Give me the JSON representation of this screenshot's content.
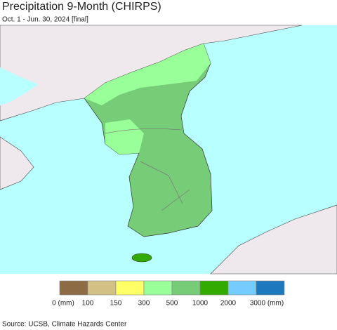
{
  "title": "Precipitation 9-Month (CHIRPS)",
  "subtitle": "Oct. 1 - Jun. 30, 2024 [final]",
  "legend": {
    "items": [
      {
        "label": "0 (mm)",
        "color": "#8c6b45"
      },
      {
        "label": "100",
        "color": "#d3c085"
      },
      {
        "label": "150",
        "color": "#ffff66"
      },
      {
        "label": "300",
        "color": "#99ff99"
      },
      {
        "label": "500",
        "color": "#77cc77"
      },
      {
        "label": "1000",
        "color": "#33aa00"
      },
      {
        "label": "2000",
        "color": "#77ccff"
      },
      {
        "label": "3000 (mm)",
        "color": "#1e78be"
      }
    ]
  },
  "source": "Source: UCSB, Climate Hazards Center"
}
